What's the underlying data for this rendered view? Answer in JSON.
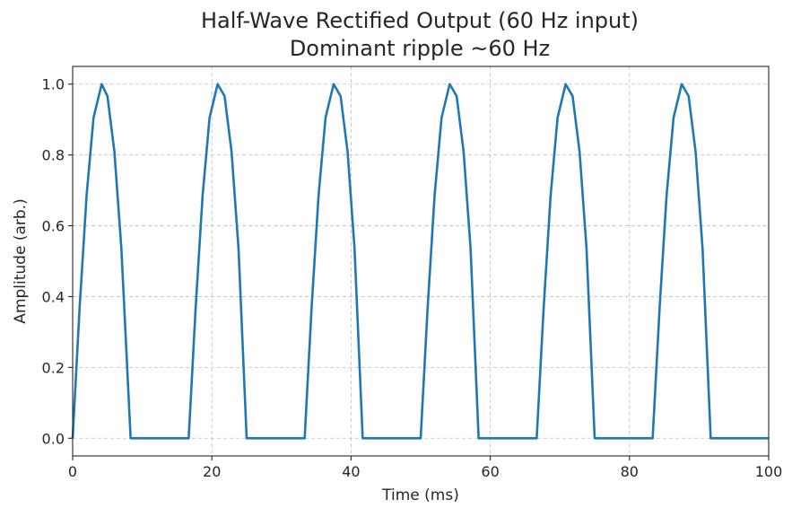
{
  "chart_data": {
    "type": "line",
    "title": "Half-Wave Rectified Output (60 Hz input)",
    "subtitle": "Dominant ripple ~60 Hz",
    "xlabel": "Time (ms)",
    "ylabel": "Amplitude (arb.)",
    "xlim": [
      0,
      100
    ],
    "ylim": [
      -0.05,
      1.05
    ],
    "x_ticks": [
      0,
      20,
      40,
      60,
      80,
      100
    ],
    "y_ticks": [
      0.0,
      0.2,
      0.4,
      0.6,
      0.8,
      1.0
    ],
    "x_tick_labels": [
      "0",
      "20",
      "40",
      "60",
      "80",
      "100"
    ],
    "y_tick_labels": [
      "0.0",
      "0.2",
      "0.4",
      "0.6",
      "0.8",
      "1.0"
    ],
    "grid": true,
    "series": [
      {
        "color": "#1f77b4",
        "x": [
          0,
          1,
          2,
          3,
          4.17,
          5,
          6,
          7,
          8.33,
          16.67,
          17.67,
          18.67,
          19.67,
          20.83,
          21.83,
          22.83,
          23.83,
          25,
          33.33,
          34.33,
          35.33,
          36.33,
          37.5,
          38.5,
          39.5,
          40.5,
          41.67,
          50,
          51,
          52,
          53,
          54.17,
          55.17,
          56.17,
          57.17,
          58.33,
          66.67,
          67.67,
          68.67,
          69.67,
          70.83,
          71.83,
          72.83,
          73.83,
          75,
          83.33,
          84.33,
          85.33,
          86.33,
          87.5,
          88.5,
          89.5,
          90.5,
          91.67,
          100
        ],
        "y": [
          0,
          0.368,
          0.685,
          0.905,
          1.0,
          0.966,
          0.809,
          0.536,
          0,
          0,
          0.368,
          0.685,
          0.905,
          1.0,
          0.966,
          0.809,
          0.536,
          0,
          0,
          0.368,
          0.685,
          0.905,
          1.0,
          0.966,
          0.809,
          0.536,
          0,
          0,
          0.368,
          0.685,
          0.905,
          1.0,
          0.966,
          0.809,
          0.536,
          0,
          0,
          0.368,
          0.685,
          0.905,
          1.0,
          0.966,
          0.809,
          0.536,
          0,
          0,
          0.368,
          0.685,
          0.905,
          1.0,
          0.966,
          0.809,
          0.536,
          0,
          0
        ]
      }
    ]
  }
}
